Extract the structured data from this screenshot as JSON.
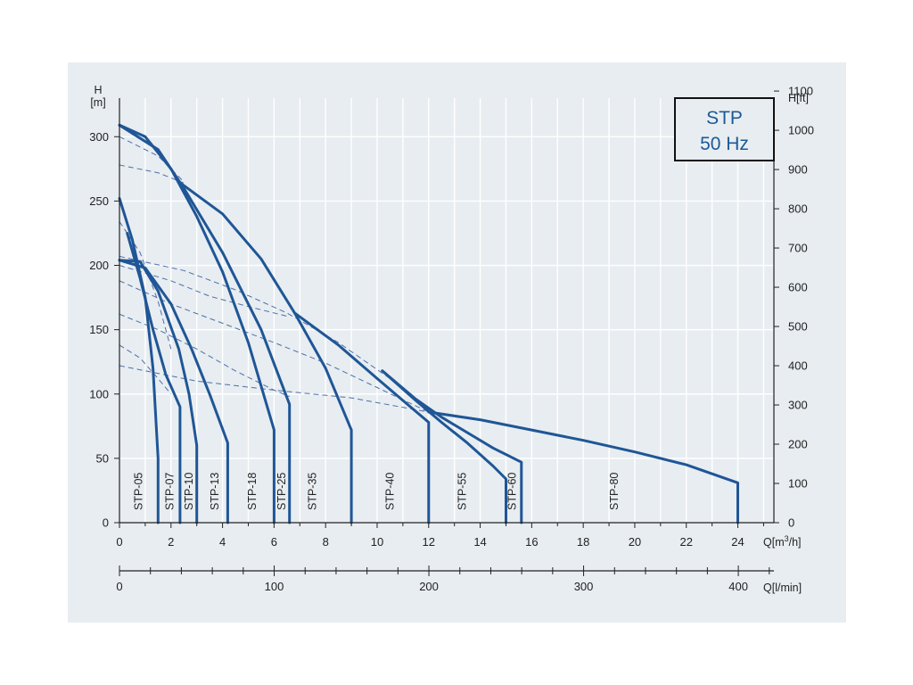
{
  "chart_data": {
    "type": "line",
    "colors": {
      "curve": "#1f5696",
      "efficiency": "#4d6fa8",
      "grid": "#ffffff",
      "axis": "#222222",
      "background": "#e8edf1",
      "label_box_border": "#111111",
      "label_box_text": "#1b5a96"
    },
    "info_box": {
      "line1": "STP",
      "line2": "50 Hz"
    },
    "axes": {
      "y_left": {
        "label_line1": "H",
        "label_line2": "[m]",
        "ticks": [
          "0",
          "50",
          "100",
          "150",
          "200",
          "250",
          "300"
        ],
        "ylim": [
          0,
          330
        ]
      },
      "y_right": {
        "label": "H[ft]",
        "ticks": [
          "0",
          "100",
          "200",
          "300",
          "400",
          "500",
          "600",
          "700",
          "800",
          "900",
          "1000",
          "1100"
        ],
        "ylim": [
          0,
          1082
        ]
      },
      "x_bottom": {
        "label_main": "Q[m",
        "label_sup": "3",
        "label_tail": "/h]",
        "ticks": [
          "0",
          "2",
          "4",
          "6",
          "8",
          "10",
          "12",
          "14",
          "16",
          "18",
          "20",
          "22",
          "24"
        ],
        "xlim": [
          0,
          25.4
        ]
      },
      "x_secondary": {
        "label": "Q[l/min]",
        "ticks": [
          "0",
          "100",
          "200",
          "300",
          "400"
        ],
        "xlim": [
          0,
          423
        ]
      }
    },
    "grid": true,
    "series": [
      {
        "name": "STP-05",
        "label": "STP-05",
        "label_x": 0.75,
        "points": [
          [
            0,
            252
          ],
          [
            0.5,
            220
          ],
          [
            1.0,
            175
          ],
          [
            1.3,
            120
          ],
          [
            1.5,
            50
          ],
          [
            1.5,
            0
          ]
        ]
      },
      {
        "name": "STP-07",
        "label": "STP-07",
        "label_x": 1.95,
        "points": [
          [
            0.3,
            225
          ],
          [
            0.8,
            190
          ],
          [
            1.3,
            150
          ],
          [
            1.8,
            115
          ],
          [
            2.35,
            90
          ],
          [
            2.35,
            0
          ]
        ]
      },
      {
        "name": "STP-10",
        "label": "STP-10",
        "label_x": 2.7,
        "points": [
          [
            0,
            204
          ],
          [
            0.8,
            203
          ],
          [
            1.5,
            180
          ],
          [
            2.3,
            135
          ],
          [
            2.7,
            100
          ],
          [
            3.0,
            60
          ],
          [
            3.0,
            0
          ]
        ]
      },
      {
        "name": "STP-13",
        "label": "STP-13",
        "label_x": 3.7,
        "points": [
          [
            0,
            204
          ],
          [
            1.0,
            198
          ],
          [
            2.0,
            170
          ],
          [
            2.8,
            135
          ],
          [
            3.5,
            100
          ],
          [
            4.2,
            62
          ],
          [
            4.2,
            0
          ]
        ]
      },
      {
        "name": "STP-18",
        "label": "STP-18",
        "label_x": 5.15,
        "points": [
          [
            0,
            309
          ],
          [
            1.0,
            300
          ],
          [
            2.0,
            275
          ],
          [
            3.0,
            238
          ],
          [
            4.0,
            195
          ],
          [
            5.0,
            140
          ],
          [
            6.0,
            72
          ],
          [
            6.0,
            0
          ]
        ]
      },
      {
        "name": "STP-25",
        "label": "STP-25",
        "label_x": 6.3,
        "points": [
          [
            0,
            309
          ],
          [
            1.5,
            290
          ],
          [
            2.5,
            260
          ],
          [
            4.0,
            210
          ],
          [
            5.5,
            150
          ],
          [
            6.6,
            92
          ],
          [
            6.6,
            0
          ]
        ]
      },
      {
        "name": "STP-35",
        "label": "STP-35",
        "label_x": 7.5,
        "points": [
          [
            2.3,
            265
          ],
          [
            4.0,
            240
          ],
          [
            5.5,
            205
          ],
          [
            6.8,
            163
          ],
          [
            8.0,
            120
          ],
          [
            9.0,
            72
          ],
          [
            9.0,
            0
          ]
        ]
      },
      {
        "name": "STP-40",
        "label": "STP-40",
        "label_x": 10.5,
        "points": [
          [
            6.8,
            163
          ],
          [
            8.5,
            138
          ],
          [
            10.0,
            112
          ],
          [
            11.0,
            95
          ],
          [
            12.0,
            78
          ],
          [
            12.0,
            0
          ]
        ]
      },
      {
        "name": "STP-55",
        "label": "STP-55",
        "label_x": 13.3,
        "points": [
          [
            10.2,
            118
          ],
          [
            11.5,
            95
          ],
          [
            12.5,
            78
          ],
          [
            13.5,
            62
          ],
          [
            14.5,
            44
          ],
          [
            15.0,
            34
          ],
          [
            15.0,
            0
          ]
        ]
      },
      {
        "name": "STP-60",
        "label": "STP-60",
        "label_x": 15.25,
        "points": [
          [
            10.2,
            118
          ],
          [
            11.5,
            96
          ],
          [
            12.5,
            82
          ],
          [
            13.5,
            70
          ],
          [
            14.5,
            58
          ],
          [
            15.6,
            47
          ],
          [
            15.6,
            0
          ]
        ]
      },
      {
        "name": "STP-80",
        "label": "STP-80",
        "label_x": 19.2,
        "points": [
          [
            12.0,
            86
          ],
          [
            14.0,
            80
          ],
          [
            16.0,
            72
          ],
          [
            18.0,
            64
          ],
          [
            20.0,
            55
          ],
          [
            22.0,
            45
          ],
          [
            24.0,
            31
          ],
          [
            24.0,
            0
          ]
        ]
      }
    ],
    "efficiency_curves": [
      {
        "points": [
          [
            0,
            300
          ],
          [
            1.5,
            285
          ],
          [
            2.5,
            265
          ]
        ]
      },
      {
        "points": [
          [
            0,
            278
          ],
          [
            1.5,
            272
          ],
          [
            2.5,
            264
          ]
        ]
      },
      {
        "points": [
          [
            0,
            234
          ],
          [
            0.8,
            210
          ],
          [
            1.5,
            172
          ],
          [
            2.0,
            135
          ]
        ]
      },
      {
        "points": [
          [
            0,
            207
          ],
          [
            2.5,
            196
          ],
          [
            4.5,
            181
          ],
          [
            6.5,
            163
          ],
          [
            8.5,
            140
          ],
          [
            10.5,
            112
          ],
          [
            12.0,
            86
          ]
        ]
      },
      {
        "points": [
          [
            0,
            200
          ],
          [
            2.0,
            188
          ],
          [
            3.5,
            176
          ],
          [
            5.0,
            168
          ],
          [
            6.6,
            160
          ]
        ]
      },
      {
        "points": [
          [
            0,
            188
          ],
          [
            2.0,
            170
          ],
          [
            4.0,
            155
          ],
          [
            6.0,
            140
          ],
          [
            8.0,
            124
          ],
          [
            10.0,
            105
          ],
          [
            12.0,
            86
          ]
        ]
      },
      {
        "points": [
          [
            0,
            162
          ],
          [
            1.5,
            150
          ],
          [
            3.0,
            135
          ],
          [
            4.5,
            118
          ],
          [
            6.0,
            103
          ],
          [
            6.6,
            98
          ]
        ]
      },
      {
        "points": [
          [
            0,
            138
          ],
          [
            0.8,
            128
          ],
          [
            1.5,
            112
          ],
          [
            2.0,
            100
          ]
        ]
      },
      {
        "points": [
          [
            0,
            122
          ],
          [
            3.0,
            110
          ],
          [
            6.0,
            103
          ],
          [
            9.0,
            97
          ],
          [
            12.0,
            86
          ]
        ]
      }
    ]
  }
}
